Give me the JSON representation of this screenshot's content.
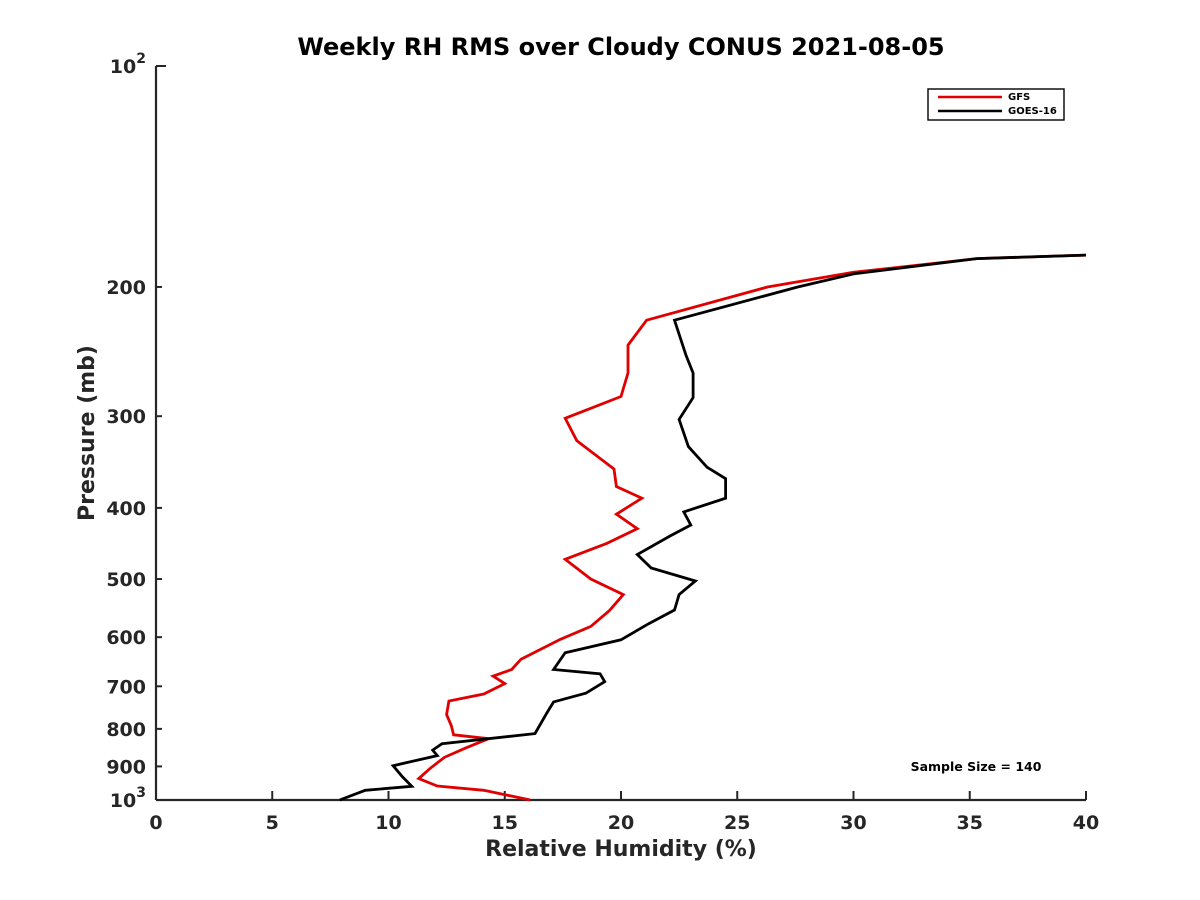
{
  "chart_data": {
    "type": "line",
    "title": "Weekly RH RMS over Cloudy CONUS 2021-08-05",
    "xlabel": "Relative Humidity (%)",
    "ylabel": "Pressure (mb)",
    "xlim": [
      0,
      40
    ],
    "ylim": [
      100,
      1000
    ],
    "yscale": "log",
    "y_reversed": true,
    "grid": false,
    "legend_position": "top-right",
    "x_ticks": [
      "0",
      "5",
      "10",
      "15",
      "20",
      "25",
      "30",
      "35",
      "40"
    ],
    "y_ticks": [
      {
        "value": 100,
        "base": "10",
        "exp": "2"
      },
      {
        "value": 200,
        "label": "200"
      },
      {
        "value": 300,
        "label": "300"
      },
      {
        "value": 400,
        "label": "400"
      },
      {
        "value": 500,
        "label": "500"
      },
      {
        "value": 600,
        "label": "600"
      },
      {
        "value": 700,
        "label": "700"
      },
      {
        "value": 800,
        "label": "800"
      },
      {
        "value": 900,
        "label": "900"
      },
      {
        "value": 1000,
        "base": "10",
        "exp": "3"
      }
    ],
    "series": [
      {
        "name": "GFS",
        "color": "#e00000",
        "points": [
          [
            40.0,
            181
          ],
          [
            35.3,
            183
          ],
          [
            30.0,
            191
          ],
          [
            26.3,
            200
          ],
          [
            21.1,
            222
          ],
          [
            20.3,
            240
          ],
          [
            20.3,
            262
          ],
          [
            20.0,
            282
          ],
          [
            17.6,
            302
          ],
          [
            18.1,
            324
          ],
          [
            19.7,
            354
          ],
          [
            19.8,
            374
          ],
          [
            20.9,
            388
          ],
          [
            19.8,
            408
          ],
          [
            20.7,
            427
          ],
          [
            19.4,
            447
          ],
          [
            17.6,
            470
          ],
          [
            18.7,
            500
          ],
          [
            20.1,
            525
          ],
          [
            19.5,
            552
          ],
          [
            18.7,
            580
          ],
          [
            17.4,
            604
          ],
          [
            15.7,
            643
          ],
          [
            15.3,
            664
          ],
          [
            14.5,
            678
          ],
          [
            15.0,
            694
          ],
          [
            14.1,
            717
          ],
          [
            12.6,
            733
          ],
          [
            12.5,
            765
          ],
          [
            12.7,
            792
          ],
          [
            12.8,
            815
          ],
          [
            14.3,
            825
          ],
          [
            13.3,
            850
          ],
          [
            12.4,
            875
          ],
          [
            11.8,
            905
          ],
          [
            11.3,
            935
          ],
          [
            12.1,
            957
          ],
          [
            14.1,
            970
          ],
          [
            16.1,
            1000
          ]
        ]
      },
      {
        "name": "GOES-16",
        "color": "#000000",
        "points": [
          [
            40.0,
            181
          ],
          [
            35.3,
            183
          ],
          [
            30.0,
            192
          ],
          [
            27.6,
            200
          ],
          [
            22.3,
            222
          ],
          [
            22.8,
            248
          ],
          [
            23.1,
            262
          ],
          [
            23.1,
            283
          ],
          [
            22.5,
            303
          ],
          [
            22.9,
            330
          ],
          [
            23.7,
            352
          ],
          [
            24.5,
            365
          ],
          [
            24.5,
            388
          ],
          [
            22.7,
            405
          ],
          [
            23.0,
            422
          ],
          [
            22.1,
            437
          ],
          [
            20.7,
            463
          ],
          [
            21.3,
            483
          ],
          [
            23.2,
            503
          ],
          [
            22.5,
            525
          ],
          [
            22.3,
            551
          ],
          [
            21.2,
            575
          ],
          [
            20.0,
            605
          ],
          [
            17.6,
            630
          ],
          [
            17.1,
            664
          ],
          [
            19.1,
            673
          ],
          [
            19.3,
            690
          ],
          [
            18.5,
            715
          ],
          [
            17.1,
            735
          ],
          [
            16.8,
            762
          ],
          [
            16.3,
            812
          ],
          [
            12.3,
            838
          ],
          [
            11.9,
            855
          ],
          [
            12.1,
            870
          ],
          [
            10.2,
            898
          ],
          [
            10.6,
            930
          ],
          [
            11.0,
            958
          ],
          [
            9.0,
            970
          ],
          [
            7.9,
            1000
          ]
        ]
      }
    ],
    "annotations": [
      {
        "text": "Sample Size = 140",
        "x": 35,
        "y": 900
      }
    ]
  }
}
